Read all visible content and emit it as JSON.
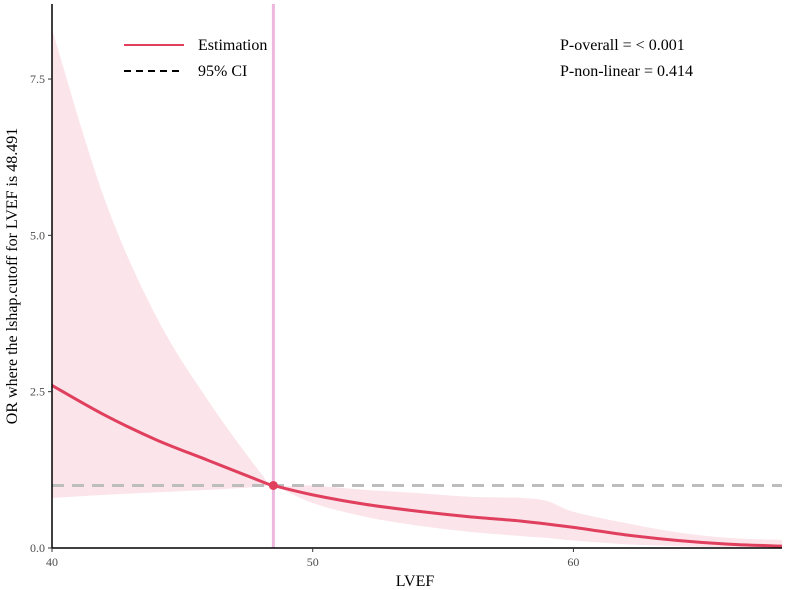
{
  "chart_data": {
    "type": "line",
    "xlabel": "LVEF",
    "ylabel": "OR where the lshap.cutoff for LVEF is 48.491",
    "xlim": [
      40,
      68
    ],
    "ylim": [
      0,
      8.7
    ],
    "x_ticks": [
      40,
      50,
      60
    ],
    "x_tick_labels": [
      "40",
      "50",
      "60"
    ],
    "y_ticks": [
      0,
      2.5,
      5.0,
      7.5
    ],
    "y_tick_labels": [
      "0.0",
      "2.5",
      "5.0",
      "7.5"
    ],
    "grid": false,
    "legend_placement": "top-left",
    "legend": [
      {
        "label": "Estimation",
        "style": "solid",
        "color": "#e0405e"
      },
      {
        "label": "95% CI",
        "style": "dashed",
        "color": "#000000"
      }
    ],
    "annotations": [
      "P-overall = < 0.001",
      "P-non-linear = 0.414"
    ],
    "reference_line_y": 1.0,
    "cutoff_x": 48.491,
    "cutoff_y": 1.0,
    "series": [
      {
        "name": "Estimation",
        "x": [
          40,
          42,
          44,
          46,
          48,
          48.491,
          50,
          52,
          54,
          56,
          58,
          60,
          62,
          64,
          66,
          68
        ],
        "y": [
          2.6,
          2.13,
          1.73,
          1.4,
          1.07,
          1.0,
          0.85,
          0.7,
          0.59,
          0.5,
          0.43,
          0.33,
          0.21,
          0.12,
          0.06,
          0.03
        ]
      }
    ],
    "ci_band": {
      "x": [
        40,
        42,
        44,
        46,
        48,
        48.491,
        50,
        52,
        54,
        56,
        58,
        59,
        60,
        62,
        64,
        66,
        68
      ],
      "lower": [
        0.8,
        0.85,
        0.89,
        0.93,
        0.98,
        1.0,
        0.72,
        0.5,
        0.36,
        0.26,
        0.19,
        0.16,
        0.12,
        0.06,
        0.03,
        0.01,
        0.0
      ],
      "upper": [
        8.3,
        5.6,
        3.7,
        2.35,
        1.2,
        1.0,
        1.0,
        0.93,
        0.88,
        0.82,
        0.8,
        0.75,
        0.58,
        0.4,
        0.25,
        0.16,
        0.13
      ]
    },
    "colors": {
      "line": "#e0405e",
      "band": "#fbe4ea",
      "cutoff_line": "#eeb7de",
      "reference_line": "#bdbdbd",
      "axis": "#000000"
    }
  }
}
